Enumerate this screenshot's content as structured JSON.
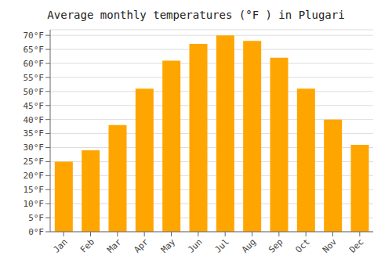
{
  "chart_data": {
    "type": "bar",
    "title": "Average monthly temperatures (°F ) in Plugari",
    "categories": [
      "Jan",
      "Feb",
      "Mar",
      "Apr",
      "May",
      "Jun",
      "Jul",
      "Aug",
      "Sep",
      "Oct",
      "Nov",
      "Dec"
    ],
    "values": [
      25,
      29,
      38,
      51,
      61,
      67,
      70,
      68,
      62,
      51,
      40,
      31
    ],
    "color": "#FFA500",
    "ylim": [
      0,
      72
    ],
    "yticks": [
      {
        "value": 0,
        "label": "0°F"
      },
      {
        "value": 5,
        "label": "5°F"
      },
      {
        "value": 10,
        "label": "10°F"
      },
      {
        "value": 15,
        "label": "15°F"
      },
      {
        "value": 20,
        "label": "20°F"
      },
      {
        "value": 25,
        "label": "25°F"
      },
      {
        "value": 30,
        "label": "30°F"
      },
      {
        "value": 35,
        "label": "35°F"
      },
      {
        "value": 40,
        "label": "40°F"
      },
      {
        "value": 45,
        "label": "45°F"
      },
      {
        "value": 50,
        "label": "50°F"
      },
      {
        "value": 55,
        "label": "55°F"
      },
      {
        "value": 60,
        "label": "60°F"
      },
      {
        "value": 65,
        "label": "65°F"
      },
      {
        "value": 70,
        "label": "70°F"
      }
    ],
    "grid": true
  }
}
